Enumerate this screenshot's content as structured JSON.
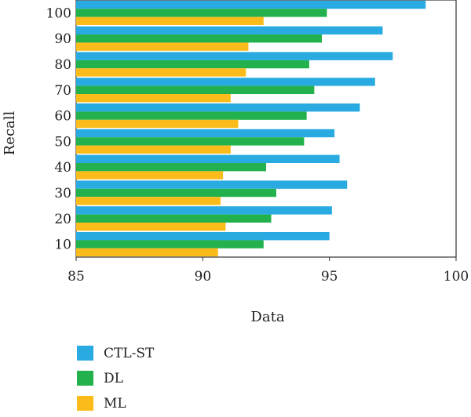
{
  "chart_data": {
    "type": "bar",
    "orientation": "horizontal",
    "xlabel": "Data",
    "ylabel": "Recall",
    "xlim": [
      85,
      100
    ],
    "x_ticks": [
      85,
      90,
      95,
      100
    ],
    "categories": [
      "10",
      "20",
      "30",
      "40",
      "50",
      "60",
      "70",
      "80",
      "90",
      "100"
    ],
    "series": [
      {
        "name": "CTL-ST",
        "color": "#29abe2",
        "values": [
          95.0,
          95.1,
          95.7,
          95.4,
          95.2,
          96.2,
          96.8,
          97.5,
          97.1,
          98.8
        ]
      },
      {
        "name": "DL",
        "color": "#22b14c",
        "values": [
          92.4,
          92.7,
          92.9,
          92.5,
          94.0,
          94.1,
          94.4,
          94.2,
          94.7,
          94.9
        ]
      },
      {
        "name": "ML",
        "color": "#fbbc1b",
        "values": [
          90.6,
          90.9,
          90.7,
          90.8,
          91.1,
          91.4,
          91.1,
          91.7,
          91.8,
          92.4
        ]
      }
    ],
    "legend": "bottom-left",
    "grid": false
  }
}
